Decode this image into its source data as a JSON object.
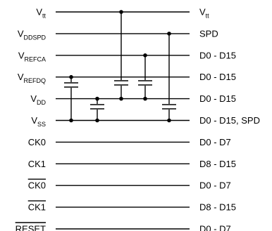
{
  "rows": [
    {
      "left": "V",
      "left_sub": "tt",
      "overbar": false,
      "right": "V",
      "right_sub": "tt"
    },
    {
      "left": "V",
      "left_sub": "DDSPD",
      "overbar": false,
      "right": "SPD",
      "right_sub": ""
    },
    {
      "left": "V",
      "left_sub": "REFCA",
      "overbar": false,
      "right": "D0 - D15",
      "right_sub": ""
    },
    {
      "left": "V",
      "left_sub": "REFDQ",
      "overbar": false,
      "right": "D0 - D15",
      "right_sub": ""
    },
    {
      "left": "V",
      "left_sub": "DD",
      "overbar": false,
      "right": "D0 - D15",
      "right_sub": ""
    },
    {
      "left": "V",
      "left_sub": "SS",
      "overbar": false,
      "right": "D0 - D15, SPD",
      "right_sub": ""
    },
    {
      "left": "CK0",
      "left_sub": "",
      "overbar": false,
      "right": "D0 - D7",
      "right_sub": ""
    },
    {
      "left": "CK1",
      "left_sub": "",
      "overbar": false,
      "right": "D8 - D15",
      "right_sub": ""
    },
    {
      "left": "CK0",
      "left_sub": "",
      "overbar": true,
      "right": "D0 - D7",
      "right_sub": ""
    },
    {
      "left": "CK1",
      "left_sub": "",
      "overbar": true,
      "right": "D8 - D15",
      "right_sub": ""
    },
    {
      "left": "RESET",
      "left_sub": "",
      "overbar": true,
      "right": "D0 - D7",
      "right_sub": ""
    }
  ]
}
